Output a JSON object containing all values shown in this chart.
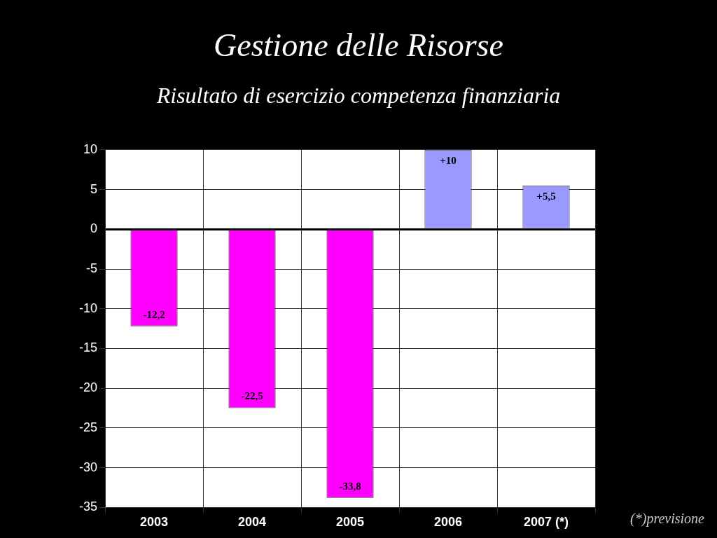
{
  "chart_data": {
    "type": "bar",
    "title": "Gestione delle Risorse",
    "subtitle": "Risultato di esercizio competenza finanziaria",
    "categories": [
      "2003",
      "2004",
      "2005",
      "2006",
      "2007 (*)"
    ],
    "values": [
      -12.2,
      -22.5,
      -33.8,
      10,
      5.5
    ],
    "colors": [
      "#ff00ff",
      "#ff00ff",
      "#ff00ff",
      "#9999ff",
      "#9999ff"
    ],
    "value_labels": [
      "-12,2",
      "-22,5",
      "-33,8",
      "+10",
      "+5,5"
    ],
    "ylim": [
      -35,
      10
    ],
    "yticks": [
      10,
      5,
      0,
      -5,
      -10,
      -15,
      -20,
      -25,
      -30,
      -35
    ],
    "grid": true,
    "annotations": [
      "(*)previsione"
    ]
  }
}
